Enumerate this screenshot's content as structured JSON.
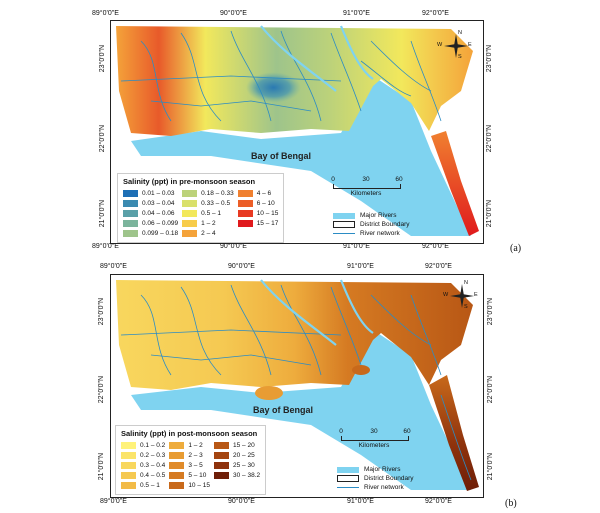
{
  "panel_a": {
    "label": "(a)",
    "lon_ticks": [
      "89°0'0\"E",
      "90°0'0\"E",
      "91°0'0\"E",
      "92°0'0\"E"
    ],
    "lat_ticks": [
      "23°0'0\"N",
      "22°0'0\"N",
      "21°0'0\"N"
    ],
    "water_label": "Bay of Bengal",
    "legend_title": "Salinity (ppt) in pre-monsoon season",
    "legend_items": [
      {
        "label": "0.01 – 0.03",
        "color": "#1e6fb5"
      },
      {
        "label": "0.03 – 0.04",
        "color": "#3b8ab0"
      },
      {
        "label": "0.04 – 0.06",
        "color": "#5aa0a8"
      },
      {
        "label": "0.06 – 0.099",
        "color": "#7bb49c"
      },
      {
        "label": "0.099 – 0.18",
        "color": "#9ec48b"
      },
      {
        "label": "0.18 – 0.33",
        "color": "#bcd27a"
      },
      {
        "label": "0.33 – 0.5",
        "color": "#d9e06b"
      },
      {
        "label": "0.5 – 1",
        "color": "#f2e85c"
      },
      {
        "label": "1 – 2",
        "color": "#f7cc4a"
      },
      {
        "label": "2 – 4",
        "color": "#f4a33a"
      },
      {
        "label": "4 – 6",
        "color": "#f08030"
      },
      {
        "label": "6 – 10",
        "color": "#ec5e28"
      },
      {
        "label": "10 – 15",
        "color": "#e83a22"
      },
      {
        "label": "15 – 17",
        "color": "#e01a1c"
      }
    ]
  },
  "panel_b": {
    "label": "(b)",
    "lon_ticks": [
      "89°0'0\"E",
      "90°0'0\"E",
      "91°0'0\"E",
      "92°0'0\"E"
    ],
    "lat_ticks": [
      "23°0'0\"N",
      "22°0'0\"N",
      "21°0'0\"N"
    ],
    "water_label": "Bay of Bengal",
    "legend_title": "Salinity (ppt) in post-monsoon season",
    "legend_items": [
      {
        "label": "0.1 – 0.2",
        "color": "#fff27a"
      },
      {
        "label": "0.2 – 0.3",
        "color": "#fbe46a"
      },
      {
        "label": "0.3 – 0.4",
        "color": "#f8d75e"
      },
      {
        "label": "0.4 – 0.5",
        "color": "#f5c952"
      },
      {
        "label": "0.5 – 1",
        "color": "#f2bb47"
      },
      {
        "label": "1 – 2",
        "color": "#eeac3d"
      },
      {
        "label": "2 – 3",
        "color": "#e89c33"
      },
      {
        "label": "3 – 5",
        "color": "#e08b2a"
      },
      {
        "label": "5 – 10",
        "color": "#d57a22"
      },
      {
        "label": "10 – 15",
        "color": "#c8691b"
      },
      {
        "label": "15 – 20",
        "color": "#b85715"
      },
      {
        "label": "20 – 25",
        "color": "#a44510"
      },
      {
        "label": "25 – 30",
        "color": "#8e320c"
      },
      {
        "label": "30 – 38.2",
        "color": "#6e1e08"
      }
    ]
  },
  "map_legend": {
    "major_rivers": "Major Rivers",
    "district_boundary": "District Boundary",
    "river_network": "River network",
    "river_color": "#7fd3f0",
    "network_color": "#2b8cc4"
  },
  "scale": {
    "title": "Kilometers",
    "labels": [
      "0",
      "30",
      "60"
    ]
  },
  "compass": {
    "n": "N",
    "s": "S",
    "e": "E",
    "w": "W"
  }
}
